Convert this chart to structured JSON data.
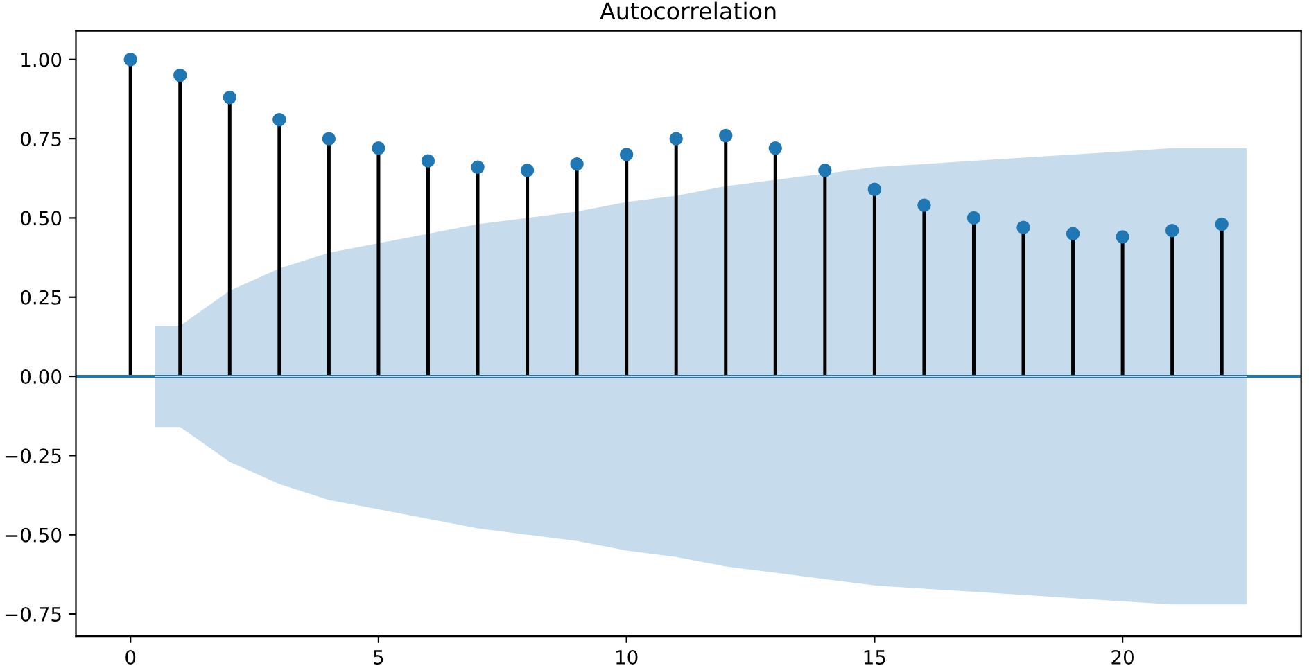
{
  "chart_data": {
    "type": "lollipop",
    "title": "Autocorrelation",
    "x": [
      0,
      1,
      2,
      3,
      4,
      5,
      6,
      7,
      8,
      9,
      10,
      11,
      12,
      13,
      14,
      15,
      16,
      17,
      18,
      19,
      20,
      21,
      22
    ],
    "series": [
      {
        "type": "line",
        "marker": "none",
        "color": "#c6dbec",
        "values": [
          0,
          0,
          0,
          0,
          0,
          0,
          0,
          0,
          0,
          0,
          0,
          0,
          0,
          0,
          0,
          0,
          0,
          0,
          0,
          0,
          0,
          0,
          0,
          0
        ],
        "x": [
          0.5,
          1,
          2,
          3,
          4,
          5,
          6,
          7,
          8,
          9,
          10,
          11,
          12,
          13,
          14,
          15,
          16,
          17,
          18,
          19,
          20,
          21,
          22,
          22.5
        ],
        "lower": [
          -0.16,
          -0.16,
          -0.27,
          -0.34,
          -0.39,
          -0.42,
          -0.45,
          -0.48,
          -0.5,
          -0.52,
          -0.55,
          -0.57,
          -0.6,
          -0.62,
          -0.64,
          -0.66,
          -0.67,
          -0.68,
          -0.69,
          -0.7,
          -0.71,
          -0.72,
          -0.72,
          -0.72
        ],
        "upper": [
          0.16,
          0.16,
          0.27,
          0.34,
          0.39,
          0.42,
          0.45,
          0.48,
          0.5,
          0.52,
          0.55,
          0.57,
          0.6,
          0.62,
          0.64,
          0.66,
          0.67,
          0.68,
          0.69,
          0.7,
          0.71,
          0.72,
          0.72,
          0.72
        ]
      },
      {
        "type": "lollipop",
        "color": "#1f77b4",
        "values": [
          1.0,
          0.95,
          0.88,
          0.81,
          0.75,
          0.72,
          0.68,
          0.66,
          0.65,
          0.67,
          0.7,
          0.75,
          0.76,
          0.72,
          0.65,
          0.59,
          0.54,
          0.5,
          0.47,
          0.45,
          0.44,
          0.46,
          0.48
        ]
      }
    ],
    "ref_lines": [
      {
        "axis": "y",
        "value": 0,
        "color": "#1f77b4"
      }
    ],
    "marker": "circle",
    "grid": false,
    "legend": false,
    "xlim": [
      -1.1,
      23.6
    ],
    "xticks": [
      0,
      5,
      10,
      15,
      20
    ],
    "ylim": [
      -0.82,
      1.09
    ],
    "yticks": [
      {
        "value": -0.75,
        "label": "−0.75"
      },
      {
        "value": -0.5,
        "label": "−0.50"
      },
      {
        "value": -0.25,
        "label": "−0.25"
      },
      {
        "value": 0,
        "label": "0.00"
      },
      {
        "value": 0.25,
        "label": "0.25"
      },
      {
        "value": 0.5,
        "label": "0.50"
      },
      {
        "value": 0.75,
        "label": "0.75"
      },
      {
        "value": 1.0,
        "label": "1.00"
      }
    ]
  }
}
